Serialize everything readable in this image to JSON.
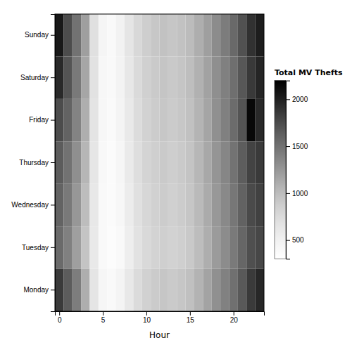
{
  "chart_data": {
    "type": "heatmap",
    "xlabel": "Hour",
    "x": [
      0,
      1,
      2,
      3,
      4,
      5,
      6,
      7,
      8,
      9,
      10,
      11,
      12,
      13,
      14,
      15,
      16,
      17,
      18,
      19,
      20,
      21,
      22,
      23
    ],
    "xlim": [
      -0.5,
      23.5
    ],
    "xticks": [
      0,
      5,
      10,
      15,
      20
    ],
    "categories": [
      "Sunday",
      "Saturday",
      "Friday",
      "Thursday",
      "Wednesday",
      "Tuesday",
      "Monday"
    ],
    "values": [
      [
        2050,
        1750,
        1500,
        1200,
        700,
        450,
        400,
        500,
        650,
        780,
        870,
        920,
        960,
        930,
        960,
        1010,
        1100,
        1200,
        1320,
        1430,
        1560,
        1720,
        1900,
        2020
      ],
      [
        1950,
        1700,
        1450,
        1150,
        680,
        430,
        390,
        480,
        630,
        760,
        850,
        900,
        940,
        910,
        940,
        990,
        1080,
        1180,
        1300,
        1400,
        1520,
        1680,
        1860,
        1970
      ],
      [
        1750,
        1600,
        1380,
        1100,
        660,
        420,
        380,
        460,
        610,
        740,
        830,
        880,
        920,
        890,
        920,
        970,
        1060,
        1160,
        1290,
        1400,
        1540,
        1700,
        2150,
        1950
      ],
      [
        1650,
        1500,
        1300,
        1050,
        640,
        410,
        370,
        440,
        590,
        720,
        810,
        860,
        900,
        870,
        900,
        950,
        1040,
        1140,
        1260,
        1360,
        1490,
        1640,
        1800,
        1850
      ],
      [
        1600,
        1450,
        1250,
        1000,
        620,
        400,
        360,
        420,
        570,
        700,
        790,
        840,
        880,
        850,
        880,
        930,
        1020,
        1120,
        1240,
        1340,
        1460,
        1610,
        1760,
        1810
      ],
      [
        1550,
        1400,
        1200,
        950,
        600,
        390,
        350,
        400,
        550,
        680,
        770,
        820,
        860,
        830,
        860,
        910,
        1000,
        1100,
        1220,
        1320,
        1440,
        1580,
        1730,
        1780
      ],
      [
        1850,
        1650,
        1420,
        1100,
        650,
        440,
        395,
        470,
        620,
        750,
        840,
        890,
        930,
        900,
        930,
        980,
        1070,
        1170,
        1290,
        1390,
        1510,
        1670,
        1850,
        1960
      ]
    ],
    "colorbar_label": "Total MV Thefts",
    "colorbar_range": [
      300,
      2200
    ],
    "colorbar_ticks": [
      500,
      1000,
      1500,
      2000
    ]
  }
}
